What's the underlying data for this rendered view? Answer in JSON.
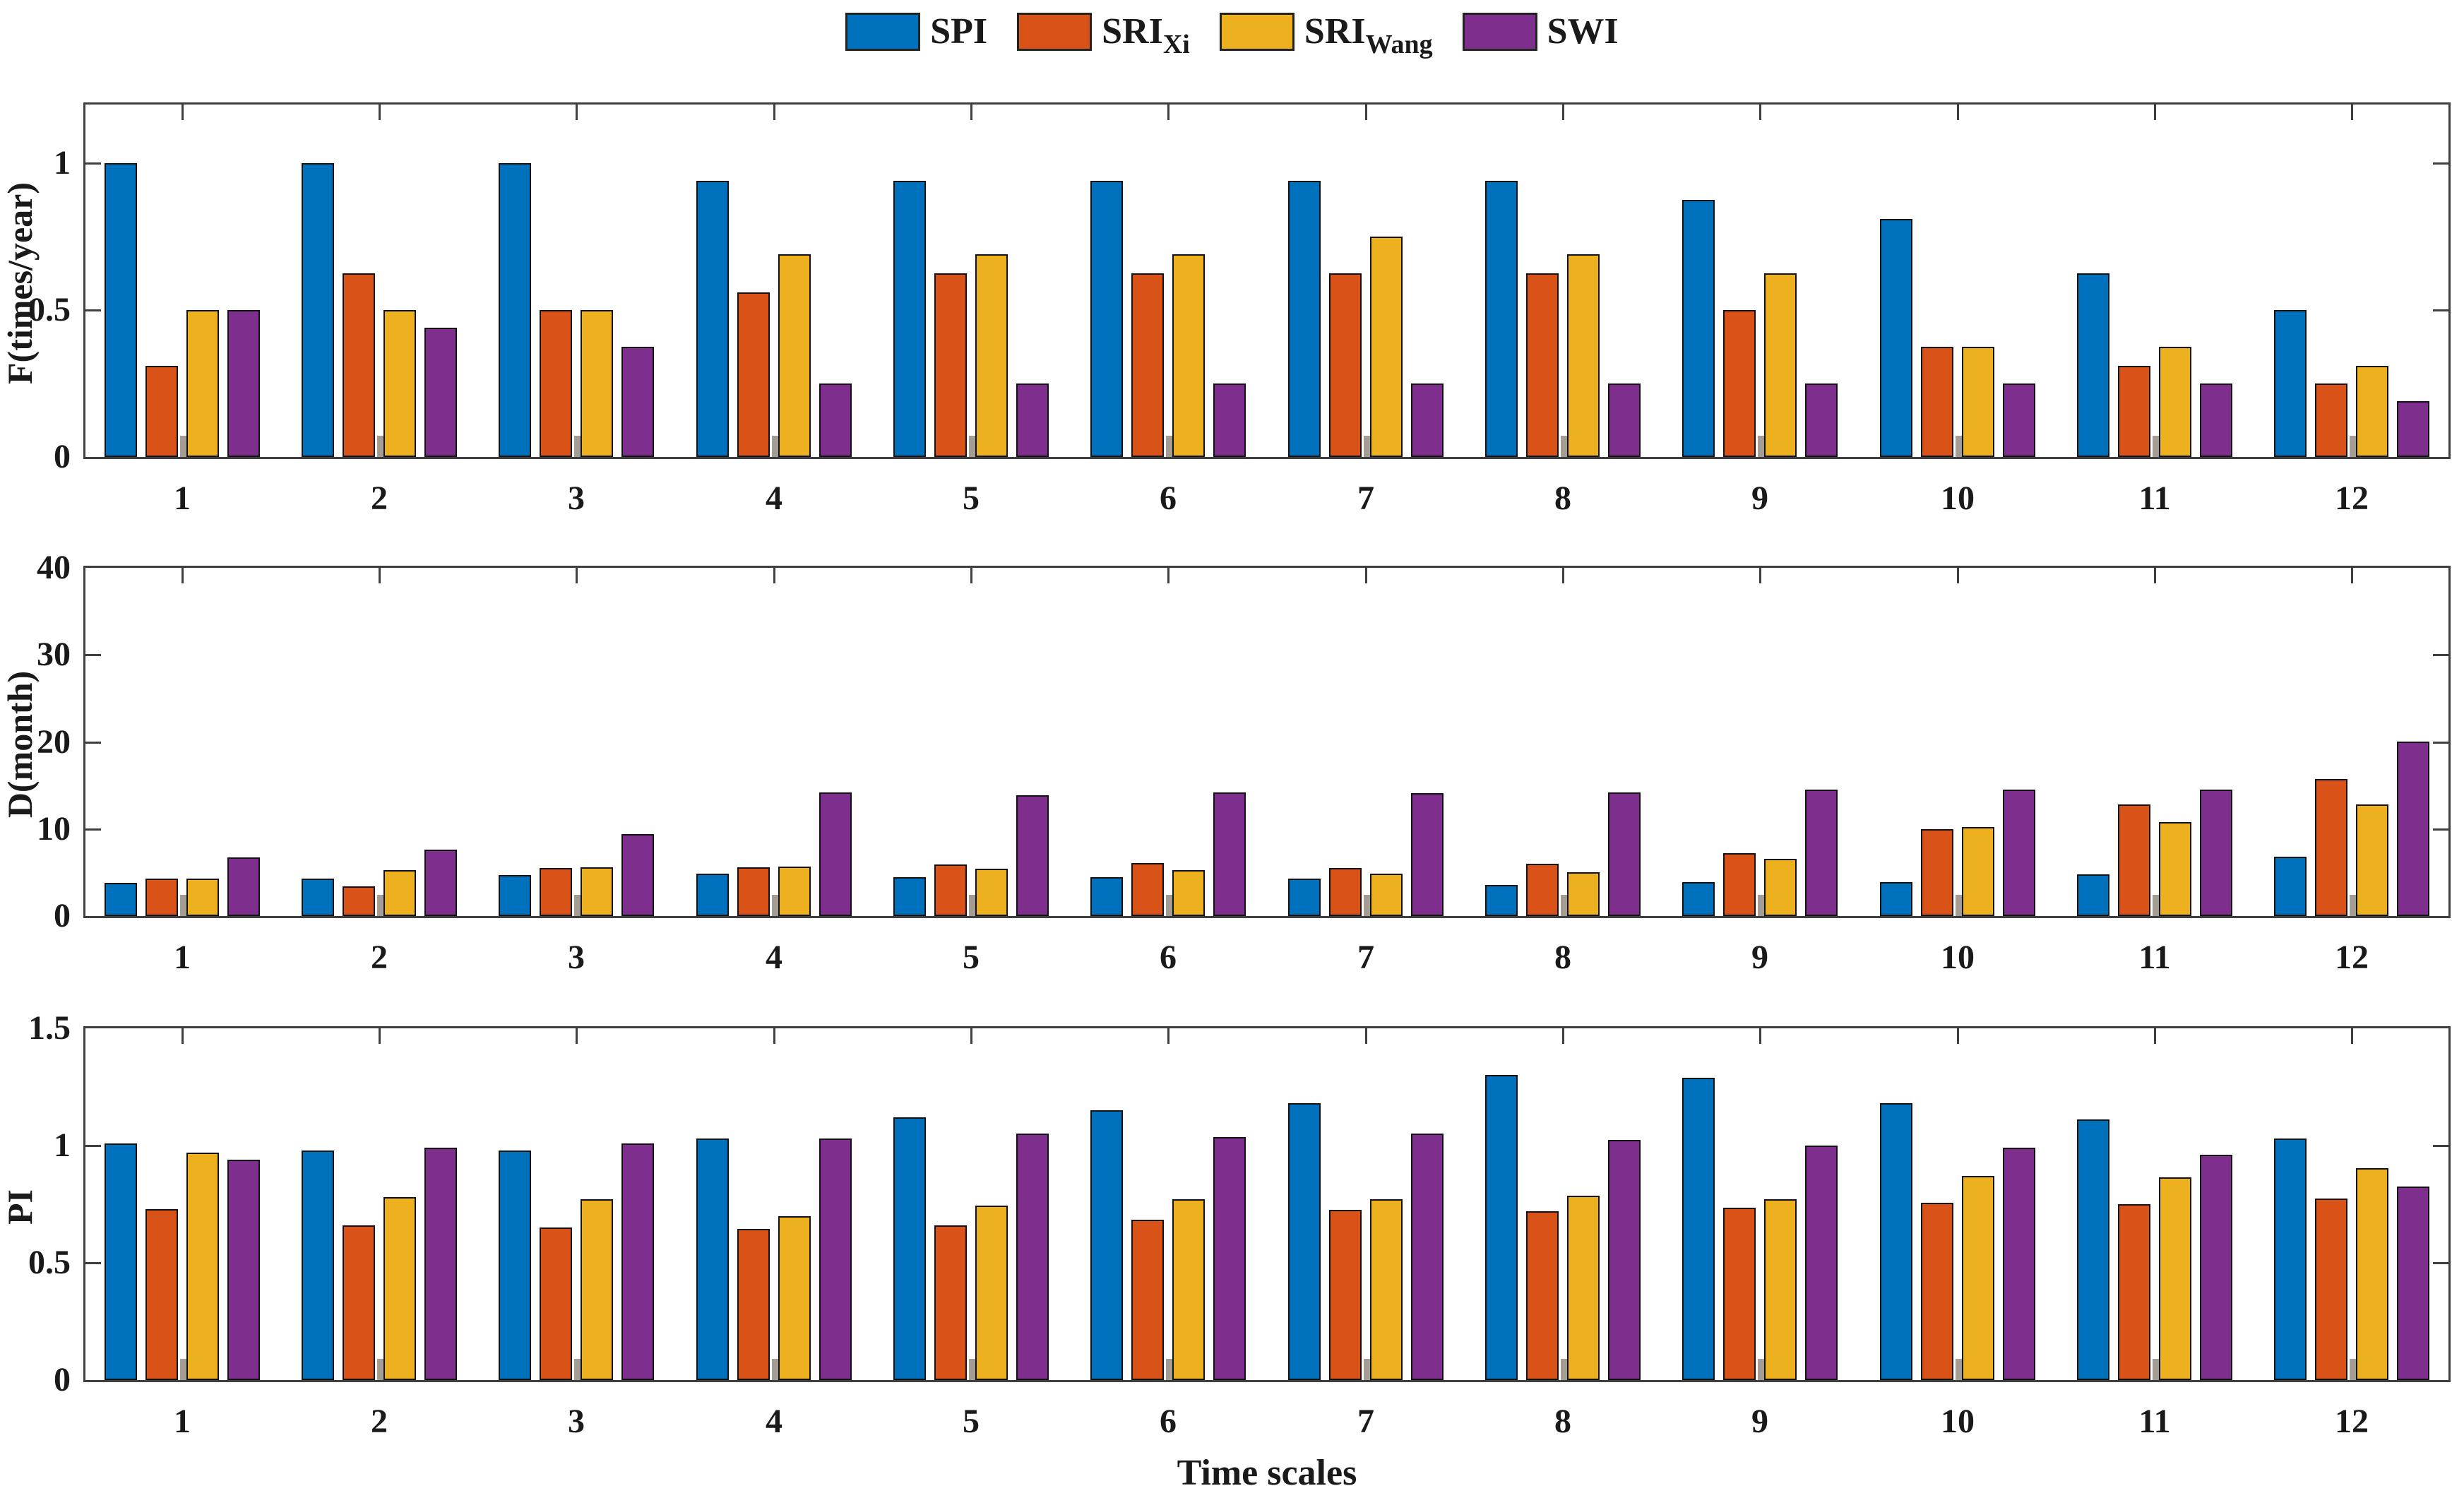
{
  "figure": {
    "xlabel": "Time scales",
    "colors": {
      "spi": "#0072BD",
      "sri_xi": "#D95319",
      "sri_wang": "#EDB120",
      "swi": "#7E2F8E",
      "axis": "#3f3f3f",
      "bar_edge": "#121212"
    },
    "legend": {
      "items": [
        {
          "label": "SPI",
          "sub": ""
        },
        {
          "label": "SRI",
          "sub": "Xi"
        },
        {
          "label": "SRI",
          "sub": "Wang"
        },
        {
          "label": "SWI",
          "sub": ""
        }
      ]
    }
  },
  "chart_data": [
    {
      "type": "bar",
      "title": "",
      "xlabel": "",
      "ylabel": "F(times/year)",
      "categories": [
        "1",
        "2",
        "3",
        "4",
        "5",
        "6",
        "7",
        "8",
        "9",
        "10",
        "11",
        "12"
      ],
      "ylim": [
        0,
        1.2
      ],
      "yticks": [
        0,
        0.5,
        1
      ],
      "grid": false,
      "legend_position": "top-center",
      "series": [
        {
          "name": "SPI",
          "color": "#0072BD",
          "values": [
            1.0,
            1.0,
            1.0,
            0.94,
            0.94,
            0.94,
            0.94,
            0.94,
            0.875,
            0.81,
            0.625,
            0.5
          ]
        },
        {
          "name": "SRI_Xi",
          "color": "#D95319",
          "values": [
            0.31,
            0.625,
            0.5,
            0.56,
            0.625,
            0.625,
            0.625,
            0.625,
            0.5,
            0.375,
            0.31,
            0.25
          ]
        },
        {
          "name": "SRI_Wang",
          "color": "#EDB120",
          "values": [
            0.5,
            0.5,
            0.5,
            0.69,
            0.69,
            0.69,
            0.75,
            0.69,
            0.625,
            0.375,
            0.375,
            0.31
          ]
        },
        {
          "name": "SWI",
          "color": "#7E2F8E",
          "values": [
            0.5,
            0.44,
            0.375,
            0.25,
            0.25,
            0.25,
            0.25,
            0.25,
            0.25,
            0.25,
            0.25,
            0.19
          ]
        }
      ]
    },
    {
      "type": "bar",
      "title": "",
      "xlabel": "",
      "ylabel": "D(month)",
      "categories": [
        "1",
        "2",
        "3",
        "4",
        "5",
        "6",
        "7",
        "8",
        "9",
        "10",
        "11",
        "12"
      ],
      "ylim": [
        0,
        40
      ],
      "yticks": [
        0,
        10,
        20,
        30,
        40
      ],
      "grid": false,
      "series": [
        {
          "name": "SPI",
          "color": "#0072BD",
          "values": [
            3.8,
            4.3,
            4.7,
            4.9,
            4.5,
            4.5,
            4.3,
            3.6,
            3.9,
            3.9,
            4.8,
            6.8
          ]
        },
        {
          "name": "SRI_Xi",
          "color": "#D95319",
          "values": [
            4.3,
            3.4,
            5.5,
            5.6,
            5.9,
            6.1,
            5.5,
            6.0,
            7.2,
            10.0,
            12.8,
            15.7
          ]
        },
        {
          "name": "SRI_Wang",
          "color": "#EDB120",
          "values": [
            4.3,
            5.3,
            5.6,
            5.7,
            5.4,
            5.3,
            4.9,
            5.0,
            6.6,
            10.2,
            10.8,
            12.8
          ]
        },
        {
          "name": "SWI",
          "color": "#7E2F8E",
          "values": [
            6.7,
            7.6,
            9.4,
            14.2,
            13.9,
            14.2,
            14.1,
            14.2,
            14.5,
            14.5,
            14.5,
            20.0
          ]
        }
      ]
    },
    {
      "type": "bar",
      "title": "",
      "xlabel": "Time scales",
      "ylabel": "PI",
      "categories": [
        "1",
        "2",
        "3",
        "4",
        "5",
        "6",
        "7",
        "8",
        "9",
        "10",
        "11",
        "12"
      ],
      "ylim": [
        0,
        1.5
      ],
      "yticks": [
        0,
        0.5,
        1,
        1.5
      ],
      "grid": false,
      "series": [
        {
          "name": "SPI",
          "color": "#0072BD",
          "values": [
            1.01,
            0.98,
            0.98,
            1.03,
            1.12,
            1.15,
            1.18,
            1.3,
            1.29,
            1.18,
            1.11,
            1.03
          ]
        },
        {
          "name": "SRI_Xi",
          "color": "#D95319",
          "values": [
            0.73,
            0.66,
            0.65,
            0.645,
            0.66,
            0.685,
            0.725,
            0.72,
            0.735,
            0.755,
            0.75,
            0.775
          ]
        },
        {
          "name": "SRI_Wang",
          "color": "#EDB120",
          "values": [
            0.97,
            0.78,
            0.77,
            0.7,
            0.745,
            0.77,
            0.77,
            0.785,
            0.77,
            0.87,
            0.865,
            0.905
          ]
        },
        {
          "name": "SWI",
          "color": "#7E2F8E",
          "values": [
            0.94,
            0.99,
            1.01,
            1.03,
            1.05,
            1.035,
            1.05,
            1.025,
            1.0,
            0.99,
            0.96,
            0.825
          ]
        }
      ]
    }
  ]
}
